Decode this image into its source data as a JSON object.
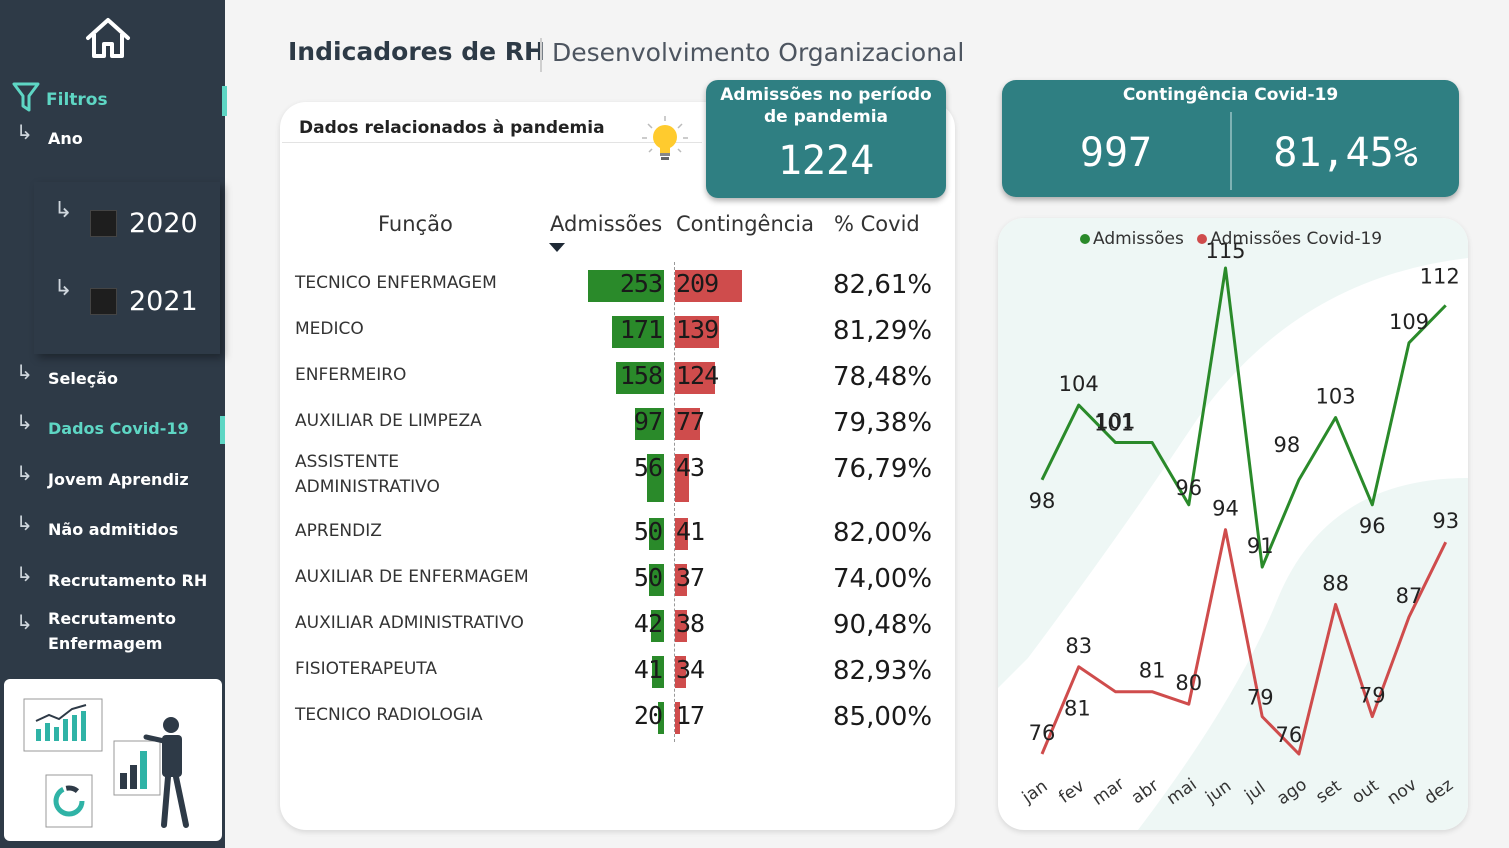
{
  "header": {
    "title": "Indicadores de RH",
    "subtitle": "Desenvolvimento Organizacional"
  },
  "sidebar": {
    "filters_label": "Filtros",
    "year_label": "Ano",
    "years": [
      "2020",
      "2021"
    ],
    "items": [
      {
        "label": "Seleção",
        "active": false
      },
      {
        "label": "Dados Covid-19",
        "active": true
      },
      {
        "label": "Jovem Aprendiz",
        "active": false
      },
      {
        "label": "Não admitidos",
        "active": false
      },
      {
        "label": "Recrutamento RH",
        "active": false
      },
      {
        "label": "Recrutamento Enfermagem",
        "active": false
      }
    ],
    "accent_color": "#5ed6c4"
  },
  "pandemic_card": {
    "title": "Dados relacionados à pandemia",
    "columns": {
      "funcao": "Função",
      "admissoes": "Admissões",
      "contingencia": "Contingência",
      "covid": "% Covid"
    },
    "rows": [
      {
        "funcao": "TECNICO ENFERMAGEM",
        "admissoes": 253,
        "contingencia": 209,
        "covid": "82,61%"
      },
      {
        "funcao": "MEDICO",
        "admissoes": 171,
        "contingencia": 139,
        "covid": "81,29%"
      },
      {
        "funcao": "ENFERMEIRO",
        "admissoes": 158,
        "contingencia": 124,
        "covid": "78,48%"
      },
      {
        "funcao": "AUXILIAR DE LIMPEZA",
        "admissoes": 97,
        "contingencia": 77,
        "covid": "79,38%"
      },
      {
        "funcao": "ASSISTENTE ADMINISTRATIVO",
        "admissoes": 56,
        "contingencia": 43,
        "covid": "76,79%"
      },
      {
        "funcao": "APRENDIZ",
        "admissoes": 50,
        "contingencia": 41,
        "covid": "82,00%"
      },
      {
        "funcao": "AUXILIAR DE ENFERMAGEM",
        "admissoes": 50,
        "contingencia": 37,
        "covid": "74,00%"
      },
      {
        "funcao": "AUXILIAR ADMINISTRATIVO",
        "admissoes": 42,
        "contingencia": 38,
        "covid": "90,48%"
      },
      {
        "funcao": "FISIOTERAPEUTA",
        "admissoes": 41,
        "contingencia": 34,
        "covid": "82,93%"
      },
      {
        "funcao": "TECNICO RADIOLOGIA",
        "admissoes": 20,
        "contingencia": 17,
        "covid": "85,00%"
      }
    ],
    "green_color": "#2a8a2a",
    "red_color": "#cf4c4c"
  },
  "kpi_admissoes": {
    "title": "Admissões no período de pandemia",
    "value": "1224"
  },
  "kpi_contingencia": {
    "title": "Contingência Covid-19",
    "value_count": "997",
    "value_pct": "81,45%"
  },
  "chart_data": {
    "type": "line",
    "categories": [
      "jan",
      "fev",
      "mar",
      "abr",
      "mai",
      "jun",
      "jul",
      "ago",
      "set",
      "out",
      "nov",
      "dez"
    ],
    "series": [
      {
        "name": "Admissões",
        "color": "#2a8a2a",
        "values": [
          98,
          104,
          101,
          101,
          96,
          115,
          91,
          98,
          103,
          96,
          109,
          112
        ]
      },
      {
        "name": "Admissões Covid-19",
        "color": "#cf4c4c",
        "values": [
          76,
          83,
          81,
          81,
          80,
          94,
          79,
          76,
          88,
          79,
          87,
          93
        ]
      }
    ],
    "legend": "top"
  }
}
